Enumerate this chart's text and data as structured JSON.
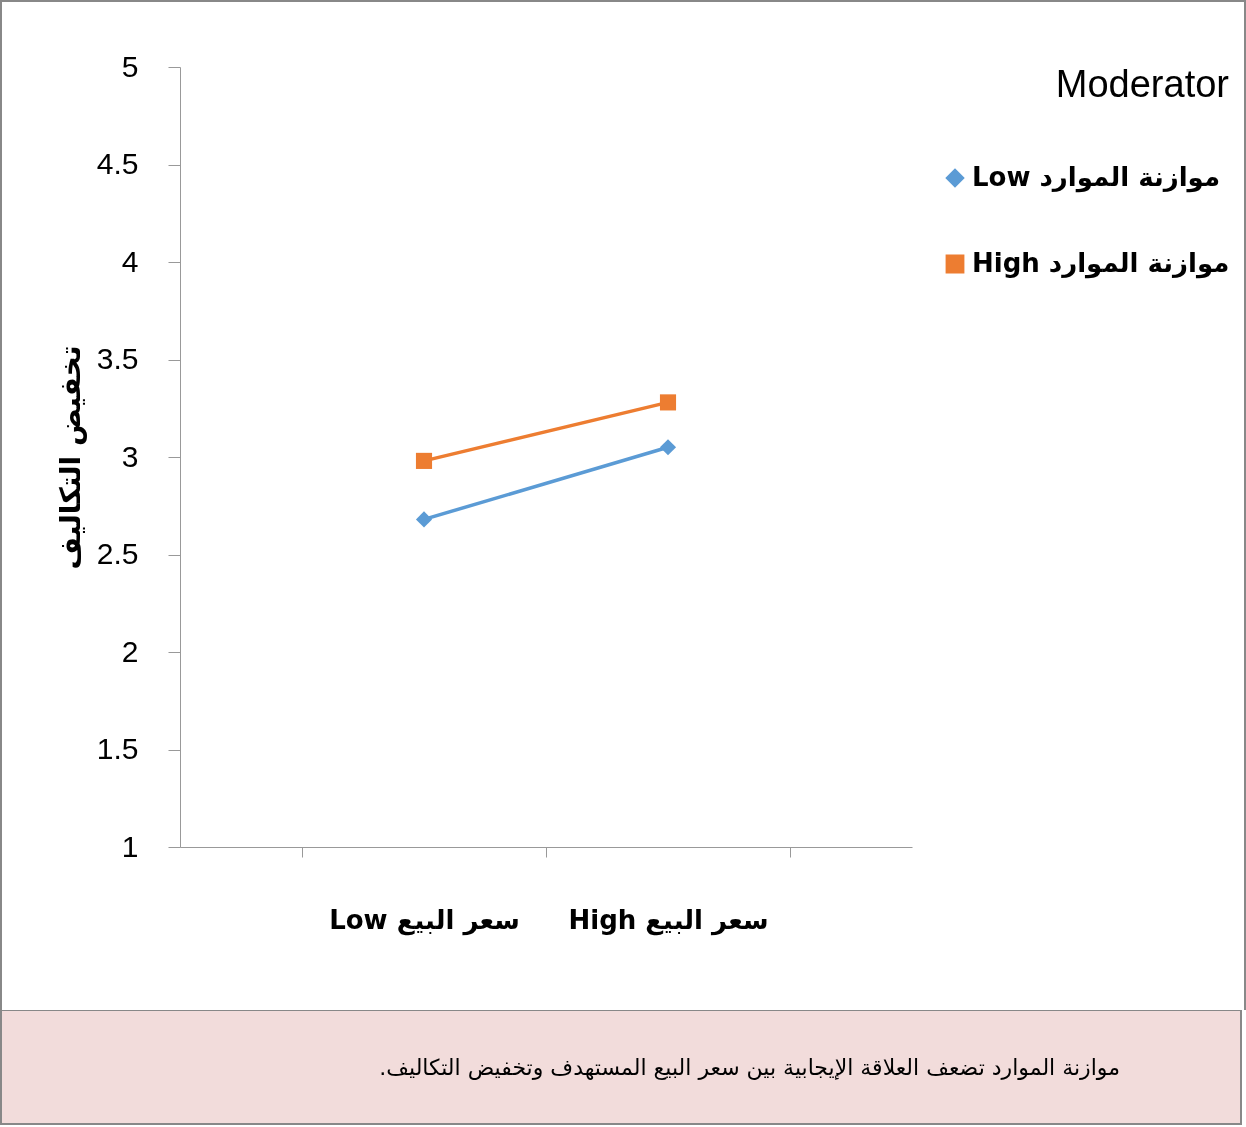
{
  "chart_data": {
    "type": "line",
    "ylabel": "تخفيض التكاليف",
    "legend_title": "Moderator",
    "legend": "right",
    "grid": false,
    "categories": [
      "Low سعر البيع",
      "High سعر البيع"
    ],
    "ylim": [
      1,
      5
    ],
    "yticks": [
      1,
      1.5,
      2,
      2.5,
      3,
      3.5,
      4,
      4.5,
      5
    ],
    "series": [
      {
        "name": "Low موازنة الموارد",
        "color": "#5b9bd5",
        "marker": "diamond",
        "values": [
          2.68,
          3.05
        ]
      },
      {
        "name": "High موازنة الموارد",
        "color": "#ed7d31",
        "marker": "square",
        "values": [
          2.98,
          3.28
        ]
      }
    ],
    "annotations": [
      "موازنة الموارد  تضعف العلاقة الإيجابية بين سعر البيع المستهدف وتخفيض التكاليف."
    ]
  }
}
